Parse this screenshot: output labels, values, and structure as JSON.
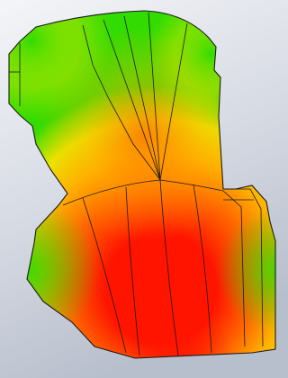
{
  "scene": {
    "colors": {
      "background_light": "#f4f5f8",
      "background_mid": "#d6dae3",
      "background_dark": "#b8bfcc",
      "plot_high": "#ff1400",
      "plot_upper": "#ff6a00",
      "plot_mid": "#ffb000",
      "plot_lower": "#e8e800",
      "plot_low": "#32dc00",
      "edge": "#1a1a1a"
    }
  }
}
